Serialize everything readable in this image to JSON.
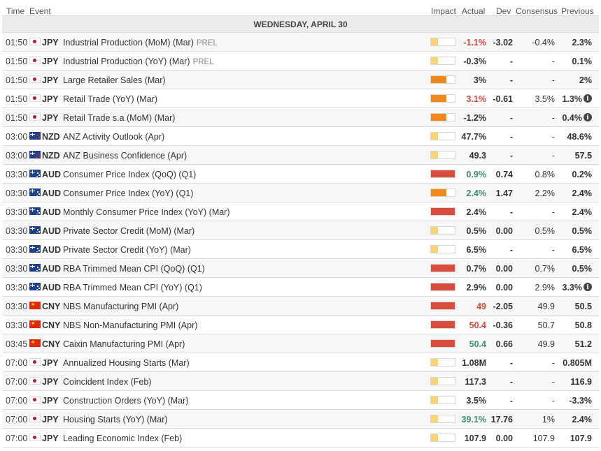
{
  "header": {
    "time": "Time",
    "event": "Event",
    "impact": "Impact",
    "actual": "Actual",
    "dev": "Dev",
    "consensus": "Consensus",
    "previous": "Previous"
  },
  "date_label": "WEDNESDAY, APRIL 30",
  "colors": {
    "negative": "#d9463b",
    "positive": "#3a8f72",
    "impact_low": "#f7d576",
    "impact_medium": "#f0891a",
    "impact_high": "#d94d3e"
  },
  "rows": [
    {
      "time": "01:50",
      "flag": "jp-flag-icon",
      "currency": "JPY",
      "event": "Industrial Production (MoM) (Mar)",
      "tag": "PREL",
      "impact": "low",
      "actual": "-1.1%",
      "actual_color": "neg",
      "dev": "-3.02",
      "consensus": "-0.4%",
      "previous": "2.3%",
      "revised": false
    },
    {
      "time": "01:50",
      "flag": "jp-flag-icon",
      "currency": "JPY",
      "event": "Industrial Production (YoY) (Mar)",
      "tag": "PREL",
      "impact": "low",
      "actual": "-0.3%",
      "actual_color": "neu",
      "dev": "-",
      "consensus": "-",
      "previous": "0.1%",
      "revised": false
    },
    {
      "time": "01:50",
      "flag": "jp-flag-icon",
      "currency": "JPY",
      "event": "Large Retailer Sales (Mar)",
      "tag": "",
      "impact": "med",
      "actual": "3%",
      "actual_color": "neu",
      "dev": "-",
      "consensus": "-",
      "previous": "2%",
      "revised": false
    },
    {
      "time": "01:50",
      "flag": "jp-flag-icon",
      "currency": "JPY",
      "event": "Retail Trade (YoY) (Mar)",
      "tag": "",
      "impact": "med",
      "actual": "3.1%",
      "actual_color": "neg",
      "dev": "-0.61",
      "consensus": "3.5%",
      "previous": "1.3%",
      "revised": true
    },
    {
      "time": "01:50",
      "flag": "jp-flag-icon",
      "currency": "JPY",
      "event": "Retail Trade s.a (MoM) (Mar)",
      "tag": "",
      "impact": "med",
      "actual": "-1.2%",
      "actual_color": "neu",
      "dev": "-",
      "consensus": "-",
      "previous": "0.4%",
      "revised": true
    },
    {
      "time": "03:00",
      "flag": "nz-flag-icon",
      "currency": "NZD",
      "event": "ANZ Activity Outlook (Apr)",
      "tag": "",
      "impact": "low",
      "actual": "47.7%",
      "actual_color": "neu",
      "dev": "-",
      "consensus": "-",
      "previous": "48.6%",
      "revised": false
    },
    {
      "time": "03:00",
      "flag": "nz-flag-icon",
      "currency": "NZD",
      "event": "ANZ Business Confidence (Apr)",
      "tag": "",
      "impact": "low",
      "actual": "49.3",
      "actual_color": "neu",
      "dev": "-",
      "consensus": "-",
      "previous": "57.5",
      "revised": false
    },
    {
      "time": "03:30",
      "flag": "au-flag-icon",
      "currency": "AUD",
      "event": "Consumer Price Index (QoQ) (Q1)",
      "tag": "",
      "impact": "high",
      "actual": "0.9%",
      "actual_color": "pos",
      "dev": "0.74",
      "consensus": "0.8%",
      "previous": "0.2%",
      "revised": false
    },
    {
      "time": "03:30",
      "flag": "au-flag-icon",
      "currency": "AUD",
      "event": "Consumer Price Index (YoY) (Q1)",
      "tag": "",
      "impact": "med",
      "actual": "2.4%",
      "actual_color": "pos",
      "dev": "1.47",
      "consensus": "2.2%",
      "previous": "2.4%",
      "revised": false
    },
    {
      "time": "03:30",
      "flag": "au-flag-icon",
      "currency": "AUD",
      "event": "Monthly Consumer Price Index (YoY) (Mar)",
      "tag": "",
      "impact": "high",
      "actual": "2.4%",
      "actual_color": "neu",
      "dev": "-",
      "consensus": "-",
      "previous": "2.4%",
      "revised": false
    },
    {
      "time": "03:30",
      "flag": "au-flag-icon",
      "currency": "AUD",
      "event": "Private Sector Credit (MoM) (Mar)",
      "tag": "",
      "impact": "low",
      "actual": "0.5%",
      "actual_color": "neu",
      "dev": "0.00",
      "consensus": "0.5%",
      "previous": "0.5%",
      "revised": false
    },
    {
      "time": "03:30",
      "flag": "au-flag-icon",
      "currency": "AUD",
      "event": "Private Sector Credit (YoY) (Mar)",
      "tag": "",
      "impact": "low",
      "actual": "6.5%",
      "actual_color": "neu",
      "dev": "-",
      "consensus": "-",
      "previous": "6.5%",
      "revised": false
    },
    {
      "time": "03:30",
      "flag": "au-flag-icon",
      "currency": "AUD",
      "event": "RBA Trimmed Mean CPI (QoQ) (Q1)",
      "tag": "",
      "impact": "high",
      "actual": "0.7%",
      "actual_color": "neu",
      "dev": "0.00",
      "consensus": "0.7%",
      "previous": "0.5%",
      "revised": false
    },
    {
      "time": "03:30",
      "flag": "au-flag-icon",
      "currency": "AUD",
      "event": "RBA Trimmed Mean CPI (YoY) (Q1)",
      "tag": "",
      "impact": "high",
      "actual": "2.9%",
      "actual_color": "neu",
      "dev": "0.00",
      "consensus": "2.9%",
      "previous": "3.3%",
      "revised": true
    },
    {
      "time": "03:30",
      "flag": "cn-flag-icon",
      "currency": "CNY",
      "event": "NBS Manufacturing PMI (Apr)",
      "tag": "",
      "impact": "high",
      "actual": "49",
      "actual_color": "neg",
      "dev": "-2.05",
      "consensus": "49.9",
      "previous": "50.5",
      "revised": false
    },
    {
      "time": "03:30",
      "flag": "cn-flag-icon",
      "currency": "CNY",
      "event": "NBS Non-Manufacturing PMI (Apr)",
      "tag": "",
      "impact": "high",
      "actual": "50.4",
      "actual_color": "neg",
      "dev": "-0.36",
      "consensus": "50.7",
      "previous": "50.8",
      "revised": false
    },
    {
      "time": "03:45",
      "flag": "cn-flag-icon",
      "currency": "CNY",
      "event": "Caixin Manufacturing PMI (Apr)",
      "tag": "",
      "impact": "high",
      "actual": "50.4",
      "actual_color": "pos",
      "dev": "0.66",
      "consensus": "49.9",
      "previous": "51.2",
      "revised": false
    },
    {
      "time": "07:00",
      "flag": "jp-flag-icon",
      "currency": "JPY",
      "event": "Annualized Housing Starts (Mar)",
      "tag": "",
      "impact": "low",
      "actual": "1.08M",
      "actual_color": "neu",
      "dev": "-",
      "consensus": "-",
      "previous": "0.805M",
      "revised": false
    },
    {
      "time": "07:00",
      "flag": "jp-flag-icon",
      "currency": "JPY",
      "event": "Coincident Index (Feb)",
      "tag": "",
      "impact": "low",
      "actual": "117.3",
      "actual_color": "neu",
      "dev": "-",
      "consensus": "-",
      "previous": "116.9",
      "revised": false
    },
    {
      "time": "07:00",
      "flag": "jp-flag-icon",
      "currency": "JPY",
      "event": "Construction Orders (YoY) (Mar)",
      "tag": "",
      "impact": "low",
      "actual": "3.5%",
      "actual_color": "neu",
      "dev": "-",
      "consensus": "-",
      "previous": "-3.3%",
      "revised": false
    },
    {
      "time": "07:00",
      "flag": "jp-flag-icon",
      "currency": "JPY",
      "event": "Housing Starts (YoY) (Mar)",
      "tag": "",
      "impact": "low",
      "actual": "39.1%",
      "actual_color": "pos",
      "dev": "17.76",
      "consensus": "1%",
      "previous": "2.4%",
      "revised": false
    },
    {
      "time": "07:00",
      "flag": "jp-flag-icon",
      "currency": "JPY",
      "event": "Leading Economic Index (Feb)",
      "tag": "",
      "impact": "low",
      "actual": "107.9",
      "actual_color": "neu",
      "dev": "0.00",
      "consensus": "107.9",
      "previous": "107.9",
      "revised": false
    }
  ]
}
